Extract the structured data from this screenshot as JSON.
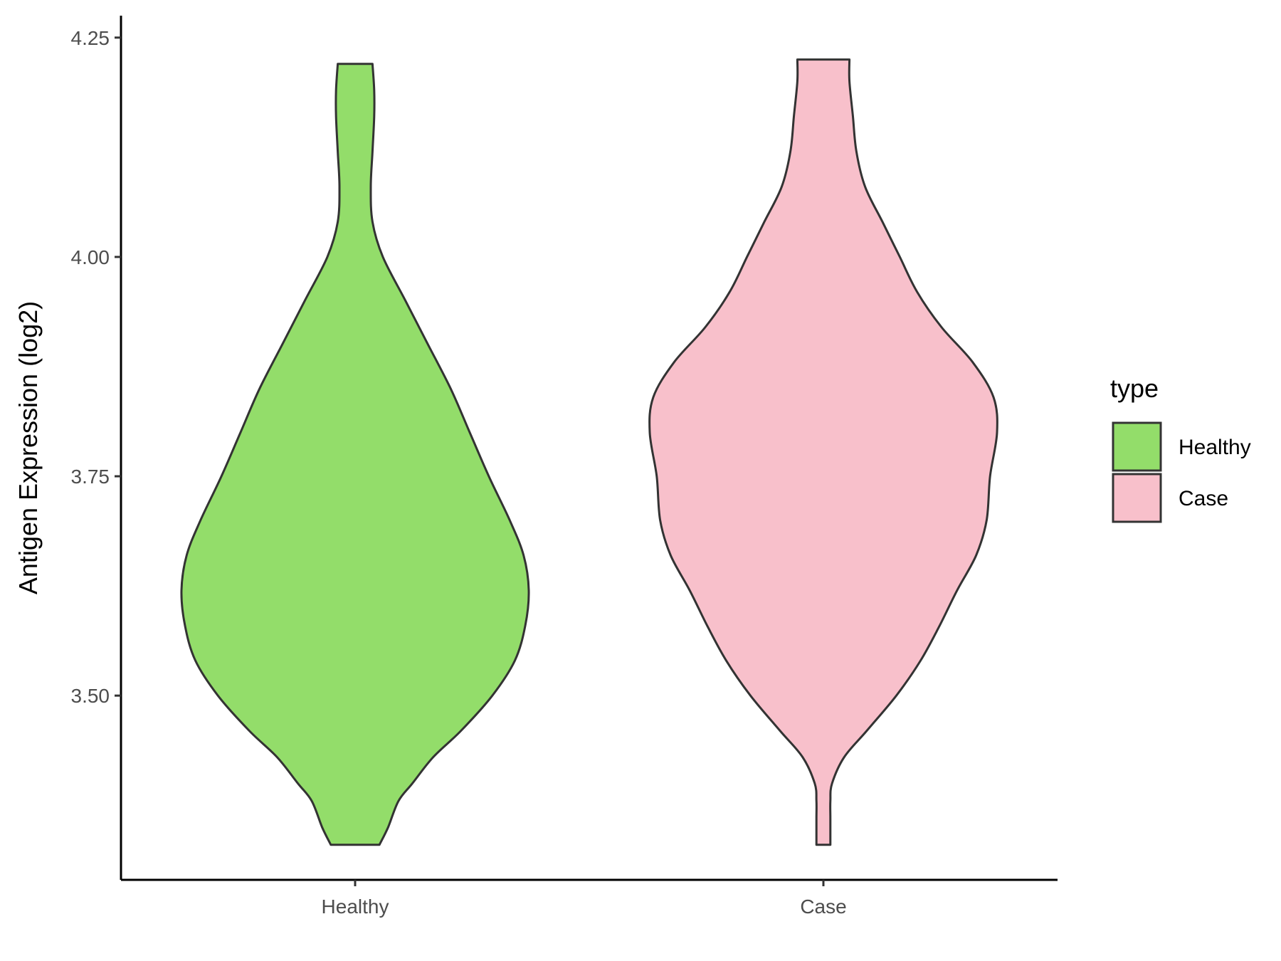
{
  "chart_data": {
    "type": "violin",
    "title": "",
    "xlabel": "",
    "ylabel": "Antigen Expression (log2)",
    "ylim": [
      3.29,
      4.275
    ],
    "yticks": [
      3.5,
      3.75,
      4.0,
      4.25
    ],
    "ytick_labels": [
      "3.50",
      "3.75",
      "4.00",
      "4.25"
    ],
    "categories": [
      "Healthy",
      "Case"
    ],
    "grid": false,
    "legend": {
      "title": "type",
      "placement": "right",
      "entries": [
        {
          "label": "Healthy",
          "color": "#93dd6a"
        },
        {
          "label": "Case",
          "color": "#f8c0cb"
        }
      ]
    },
    "series": [
      {
        "name": "Healthy",
        "color": "#93dd6a",
        "y_min": 3.33,
        "y_max": 4.22,
        "density_profile": [
          [
            3.33,
            0.14
          ],
          [
            3.35,
            0.19
          ],
          [
            3.38,
            0.25
          ],
          [
            3.4,
            0.33
          ],
          [
            3.43,
            0.45
          ],
          [
            3.46,
            0.61
          ],
          [
            3.5,
            0.79
          ],
          [
            3.54,
            0.92
          ],
          [
            3.58,
            0.98
          ],
          [
            3.62,
            1.0
          ],
          [
            3.66,
            0.97
          ],
          [
            3.7,
            0.89
          ],
          [
            3.75,
            0.77
          ],
          [
            3.8,
            0.66
          ],
          [
            3.85,
            0.55
          ],
          [
            3.9,
            0.42
          ],
          [
            3.95,
            0.29
          ],
          [
            4.0,
            0.16
          ],
          [
            4.04,
            0.1
          ],
          [
            4.08,
            0.09
          ],
          [
            4.12,
            0.1
          ],
          [
            4.16,
            0.11
          ],
          [
            4.19,
            0.11
          ],
          [
            4.22,
            0.1
          ]
        ]
      },
      {
        "name": "Case",
        "color": "#f8c0cb",
        "y_min": 3.33,
        "y_max": 4.225,
        "density_profile": [
          [
            3.33,
            0.04
          ],
          [
            3.36,
            0.04
          ],
          [
            3.38,
            0.04
          ],
          [
            3.4,
            0.05
          ],
          [
            3.43,
            0.12
          ],
          [
            3.46,
            0.25
          ],
          [
            3.5,
            0.42
          ],
          [
            3.54,
            0.56
          ],
          [
            3.58,
            0.67
          ],
          [
            3.62,
            0.77
          ],
          [
            3.66,
            0.88
          ],
          [
            3.7,
            0.94
          ],
          [
            3.75,
            0.96
          ],
          [
            3.8,
            1.0
          ],
          [
            3.84,
            0.98
          ],
          [
            3.88,
            0.86
          ],
          [
            3.92,
            0.68
          ],
          [
            3.96,
            0.54
          ],
          [
            4.0,
            0.44
          ],
          [
            4.04,
            0.34
          ],
          [
            4.08,
            0.24
          ],
          [
            4.12,
            0.19
          ],
          [
            4.16,
            0.17
          ],
          [
            4.2,
            0.15
          ],
          [
            4.225,
            0.15
          ]
        ]
      }
    ]
  }
}
